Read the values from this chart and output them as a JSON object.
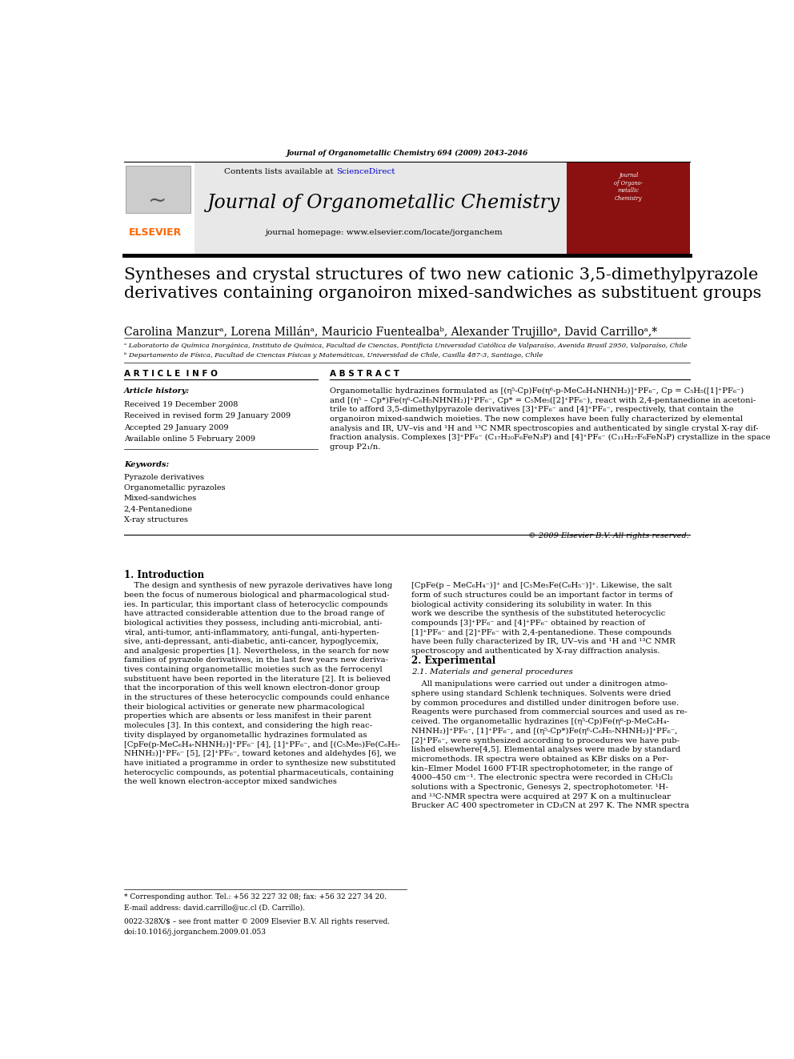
{
  "page_width": 9.92,
  "page_height": 13.23,
  "bg_color": "#ffffff",
  "top_journal_ref": "Journal of Organometallic Chemistry 694 (2009) 2043–2046",
  "header_bg": "#e8e8e8",
  "header_contents_plain": "Contents lists available at ",
  "header_sciencedirect": "ScienceDirect",
  "header_sciencedirect_color": "#0000cc",
  "header_journal_title": "Journal of Organometallic Chemistry",
  "header_homepage": "journal homepage: www.elsevier.com/locate/jorganchem",
  "elsevier_color": "#FF6600",
  "article_title": "Syntheses and crystal structures of two new cationic 3,5-dimethylpyrazole\nderivatives containing organoiron mixed-sandwiches as substituent groups",
  "authors": "Carolina Manzurᵃ, Lorena Millánᵃ, Mauricio Fuentealbaᵇ, Alexander Trujilloᵃ, David Carrilloᵃ,*",
  "affil_a": "ᵃ Laboratorio de Química Inorgánica, Instituto de Química, Facultad de Ciencias, Pontificia Universidad Católica de Valparaíso, Avenida Brasil 2950, Valparaíso, Chile",
  "affil_b": "ᵇ Departamento de Física, Facultad de Ciencias Físicas y Matemáticas, Universidad de Chile, Casilla 487-3, Santiago, Chile",
  "section_article_info": "A R T I C L E  I N F O",
  "section_abstract": "A B S T R A C T",
  "article_history_label": "Article history:",
  "received": "Received 19 December 2008",
  "revised": "Received in revised form 29 January 2009",
  "accepted": "Accepted 29 January 2009",
  "available": "Available online 5 February 2009",
  "keywords_label": "Keywords:",
  "keywords": [
    "Pyrazole derivatives",
    "Organometallic pyrazoles",
    "Mixed-sandwiches",
    "2,4-Pentanedione",
    "X-ray structures"
  ],
  "abstract_text": "Organometallic hydrazines formulated as [(η⁵-Cp)Fe(η⁶-p-MeC₆H₄NHNH₂)]⁺PF₆⁻, Cp = C₅H₅([1]⁺PF₆⁻)\nand [(η⁵ – Cp*)Fe(η⁶-C₆H₅NHNH₂)]⁺PF₆⁻, Cp* = C₅Me₅([2]⁺PF₆⁻), react with 2,4-pentanedione in acetoni-\ntrile to afford 3,5-dimethylpyrazole derivatives [3]⁺PF₆⁻ and [4]⁺PF₆⁻, respectively, that contain the\norganoiron mixed-sandwich moieties. The new complexes have been fully characterized by elemental\nanalysis and IR, UV–vis and ¹H and ¹³C NMR spectroscopies and authenticated by single crystal X-ray dif-\nfraction analysis. Complexes [3]⁺PF₆⁻ (C₁₇H₂₀F₆FeN₃P) and [4]⁺PF₆⁻ (C₁₁H₂₇F₆FeN₃P) crystallize in the space\ngroup P2₁/n.",
  "copyright": "© 2009 Elsevier B.V. All rights reserved.",
  "section1_title": "1. Introduction",
  "section2_title": "2. Experimental",
  "section21_title": "2.1. Materials and general procedures",
  "intro_left": "    The design and synthesis of new pyrazole derivatives have long\nbeen the focus of numerous biological and pharmacological stud-\nies. In particular, this important class of heterocyclic compounds\nhave attracted considerable attention due to the broad range of\nbiological activities they possess, including anti-microbial, anti-\nviral, anti-tumor, anti-inflammatory, anti-fungal, anti-hyperten-\nsive, anti-depressant, anti-diabetic, anti-cancer, hypoglycemix,\nand analgesic properties [1]. Nevertheless, in the search for new\nfamilies of pyrazole derivatives, in the last few years new deriva-\ntives containing organometallic moieties such as the ferrocenyl\nsubstituent have been reported in the literature [2]. It is believed\nthat the incorporation of this well known electron-donor group\nin the structures of these heterocyclic compounds could enhance\ntheir biological activities or generate new pharmacological\nproperties which are absents or less manifest in their parent\nmolecules [3]. In this context, and considering the high reac-\ntivity displayed by organometallic hydrazines formulated as\n[CpFe(p-MeC₆H₄-NHNH₂)]⁺PF₆⁻ [4], [1]⁺PF₆⁻, and [(C₅Me₅)Fe(C₆H₅-\nNHNH₂)]⁺PF₆⁻ [5], [2]⁺PF₆⁻, toward ketones and aldehydes [6], we\nhave initiated a programme in order to synthesize new substituted\nheterocyclic compounds, as potential pharmaceuticals, containing\nthe well known electron-acceptor mixed sandwiches",
  "intro_right": "[CpFe(p – MeC₆H₄⁻)]⁺ and [C₅Me₅Fe(C₆H₅⁻)]⁺. Likewise, the salt\nform of such structures could be an important factor in terms of\nbiological activity considering its solubility in water. In this\nwork we describe the synthesis of the substituted heterocyclic\ncompounds [3]⁺PF₆⁻ and [4]⁺PF₆⁻ obtained by reaction of\n[1]⁺PF₆⁻ and [2]⁺PF₆⁻ with 2,4-pentanedione. These compounds\nhave been fully characterized by IR, UV–vis and ¹H and ¹³C NMR\nspectroscopy and authenticated by X-ray diffraction analysis.",
  "exp_text": "    All manipulations were carried out under a dinitrogen atmo-\nsphere using standard Schlenk techniques. Solvents were dried\nby common procedures and distilled under dinitrogen before use.\nReagents were purchased from commercial sources and used as re-\nceived. The organometallic hydrazines [(η⁵-Cp)Fe(η⁶-p-MeC₆H₄-\nNHNH₂)]⁺PF₆⁻, [1]⁺PF₆⁻, and [(η⁵-Cp*)Fe(η⁶-C₆H₅-NHNH₂)]⁺PF₆⁻,\n[2]⁺PF₆⁻, were synthesized according to procedures we have pub-\nlished elsewhere[4,5]. Elemental analyses were made by standard\nmicromethods. IR spectra were obtained as KBr disks on a Per-\nkin–Elmer Model 1600 FT-IR spectrophotometer, in the range of\n4000–450 cm⁻¹. The electronic spectra were recorded in CH₂Cl₂\nsolutions with a Spectronic, Genesys 2, spectrophotometer. ¹H-\nand ¹³C-NMR spectra were acquired at 297 K on a multinuclear\nBrucker AC 400 spectrometer in CD₃CN at 297 K. The NMR spectra",
  "footnote_star": "* Corresponding author. Tel.: +56 32 227 32 08; fax: +56 32 227 34 20.",
  "footnote_email": "E-mail address: david.carrillo@uc.cl (D. Carrillo).",
  "footer_issn": "0022-328X/$ – see front matter © 2009 Elsevier B.V. All rights reserved.",
  "footer_doi": "doi:10.1016/j.jorganchem.2009.01.053"
}
